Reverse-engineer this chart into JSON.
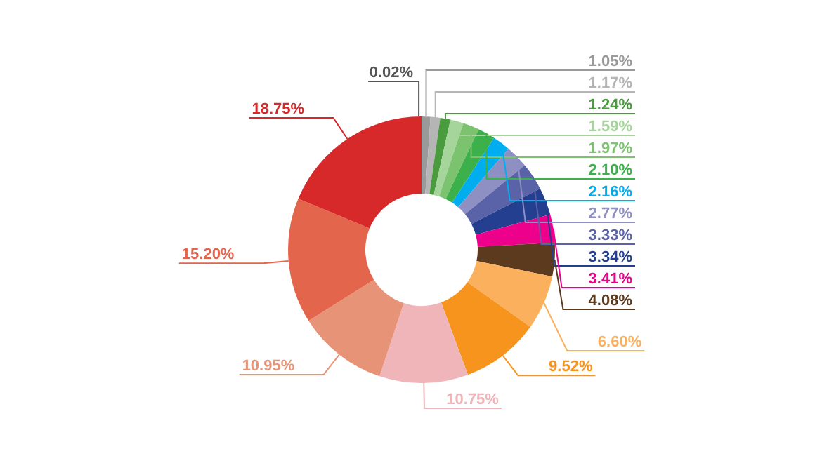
{
  "chart_data": {
    "type": "donut",
    "categories": [
      null,
      null,
      null,
      null,
      null,
      null,
      null,
      null,
      null,
      null,
      null,
      null,
      null,
      null,
      null,
      null,
      null,
      null,
      null
    ],
    "values": [
      0.02,
      1.05,
      1.17,
      1.24,
      1.59,
      1.97,
      2.1,
      2.16,
      2.77,
      3.33,
      3.34,
      3.41,
      4.08,
      6.6,
      9.52,
      10.75,
      10.95,
      15.2,
      18.75
    ],
    "value_labels": [
      "0.02%",
      "1.05%",
      "1.17%",
      "1.24%",
      "1.59%",
      "1.97%",
      "2.10%",
      "2.16%",
      "2.77%",
      "3.33%",
      "3.34%",
      "3.41%",
      "4.08%",
      "6.60%",
      "9.52%",
      "10.75%",
      "10.95%",
      "15.20%",
      "18.75%"
    ],
    "colors": [
      "#555555",
      "#9a9a9a",
      "#b5b5b5",
      "#4a9a3e",
      "#a5d59a",
      "#7cc36f",
      "#3cb04a",
      "#00aeef",
      "#8e8fc2",
      "#5a63a8",
      "#243f8f",
      "#ec008c",
      "#5b3a1e",
      "#fbb05e",
      "#f7941d",
      "#efb5b8",
      "#e69378",
      "#e3664c",
      "#d7282a"
    ]
  }
}
